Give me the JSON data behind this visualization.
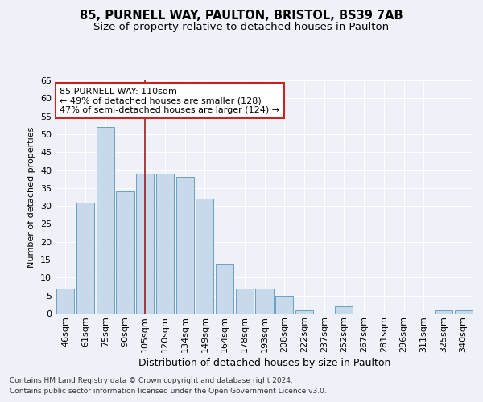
{
  "title1": "85, PURNELL WAY, PAULTON, BRISTOL, BS39 7AB",
  "title2": "Size of property relative to detached houses in Paulton",
  "xlabel": "Distribution of detached houses by size in Paulton",
  "ylabel": "Number of detached properties",
  "categories": [
    "46sqm",
    "61sqm",
    "75sqm",
    "90sqm",
    "105sqm",
    "120sqm",
    "134sqm",
    "149sqm",
    "164sqm",
    "178sqm",
    "193sqm",
    "208sqm",
    "222sqm",
    "237sqm",
    "252sqm",
    "267sqm",
    "281sqm",
    "296sqm",
    "311sqm",
    "325sqm",
    "340sqm"
  ],
  "values": [
    7,
    31,
    52,
    34,
    39,
    39,
    38,
    32,
    14,
    7,
    7,
    5,
    1,
    0,
    2,
    0,
    0,
    0,
    0,
    1,
    1
  ],
  "bar_color": "#c9d9ec",
  "bar_edge_color": "#6a9fc0",
  "vline_x": 4.5,
  "vline_color": "#9b1c1c",
  "annotation_text": "85 PURNELL WAY: 110sqm\n← 49% of detached houses are smaller (128)\n47% of semi-detached houses are larger (124) →",
  "annotation_box_color": "white",
  "annotation_box_edge_color": "#cc2222",
  "ylim": [
    0,
    65
  ],
  "yticks": [
    0,
    5,
    10,
    15,
    20,
    25,
    30,
    35,
    40,
    45,
    50,
    55,
    60,
    65
  ],
  "background_color": "#eef2f8",
  "plot_background": "#eef2f8",
  "footer_line1": "Contains HM Land Registry data © Crown copyright and database right 2024.",
  "footer_line2": "Contains public sector information licensed under the Open Government Licence v3.0.",
  "title1_fontsize": 10.5,
  "title2_fontsize": 9.5,
  "xlabel_fontsize": 9,
  "ylabel_fontsize": 8,
  "tick_fontsize": 8,
  "footer_fontsize": 6.5
}
